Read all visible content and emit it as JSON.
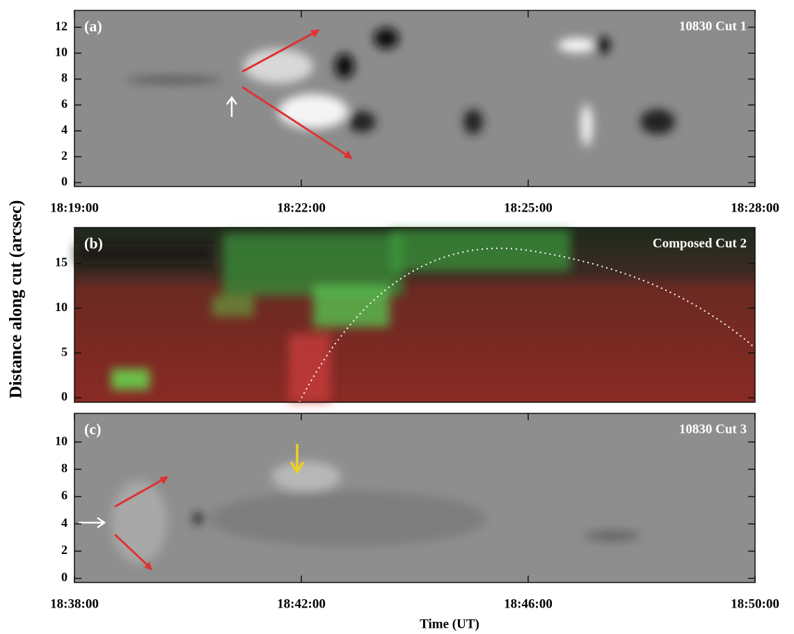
{
  "chart_data": [
    {
      "type": "image",
      "label": "(a)",
      "title": "10830 Cut 1",
      "ylim": [
        -0.3,
        13.3
      ],
      "yticks": [
        0,
        2,
        4,
        6,
        8,
        10,
        12
      ],
      "xlim": [
        1099,
        1108
      ],
      "xticks": [
        {
          "value": 1099,
          "label": "18:19:00"
        },
        {
          "value": 1102,
          "label": "18:22:00"
        },
        {
          "value": 1105,
          "label": "18:25:00"
        },
        {
          "value": 1108,
          "label": "18:28:00"
        }
      ]
    },
    {
      "type": "image",
      "label": "(b)",
      "title": "Composed Cut 2",
      "ylim": [
        -0.5,
        19
      ],
      "yticks": [
        0,
        5,
        10,
        15
      ],
      "ylabel": "Distance along cut (arcsec)"
    },
    {
      "type": "image",
      "label": "(c)",
      "title": "10830 Cut 3",
      "ylim": [
        -0.3,
        12.1
      ],
      "yticks": [
        0,
        2,
        4,
        6,
        8,
        10
      ],
      "xlim": [
        1118,
        1130
      ],
      "xticks": [
        {
          "value": 1118,
          "label": "18:38:00"
        },
        {
          "value": 1122,
          "label": "18:42:00"
        },
        {
          "value": 1126,
          "label": "18:46:00"
        },
        {
          "value": 1130,
          "label": "18:50:00"
        }
      ],
      "xlabel": "Time (UT)"
    }
  ]
}
